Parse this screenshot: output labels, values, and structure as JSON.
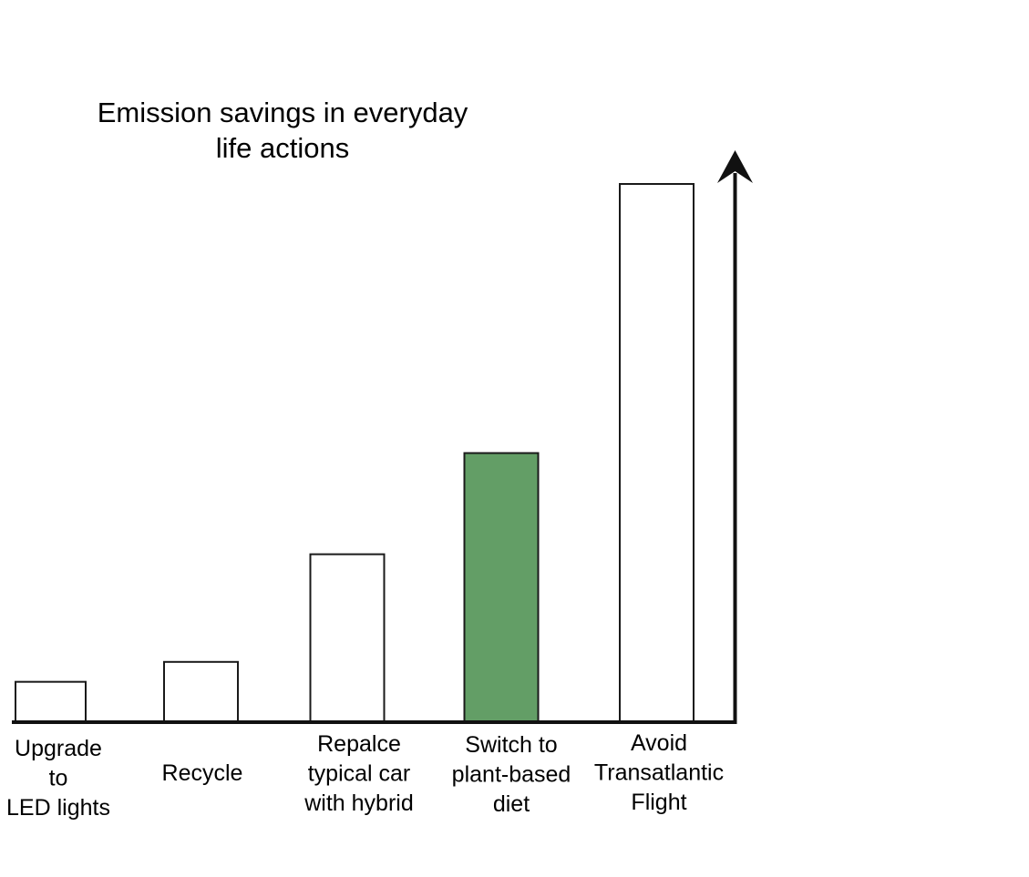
{
  "chart_data": {
    "type": "bar",
    "title_lines": [
      "Emission savings in everyday",
      "life actions"
    ],
    "categories": [
      [
        "Upgrade",
        "to",
        "LED lights"
      ],
      [
        "Recycle"
      ],
      [
        "Repalce",
        "typical car",
        "with hybrid"
      ],
      [
        "Switch to",
        "plant-based",
        "diet"
      ],
      [
        "Avoid",
        "Transatlantic",
        "Flight"
      ]
    ],
    "values": [
      0.075,
      0.112,
      0.312,
      0.5,
      1.0
    ],
    "highlight_index": 3,
    "ylim": [
      0,
      1.0
    ],
    "axis_ticks": false,
    "grid": false,
    "legend": "none",
    "colors": {
      "default_fill": "#ffffff",
      "highlight_fill": "#639e66",
      "stroke": "#1a1a1a",
      "axis": "#111111"
    }
  }
}
